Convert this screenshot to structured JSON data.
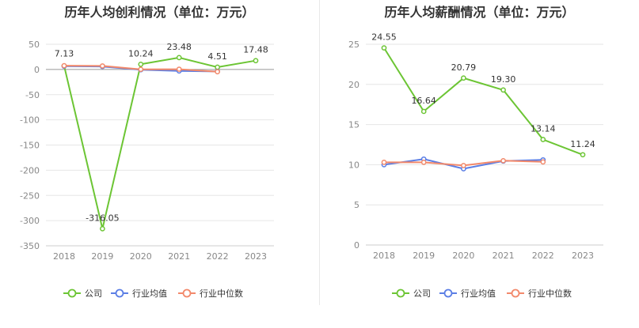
{
  "chart_data": [
    {
      "type": "line",
      "title": "历年人均创利情况（单位：万元）",
      "categories": [
        "2018",
        "2019",
        "2020",
        "2021",
        "2022",
        "2023"
      ],
      "ylim": [
        -350,
        50
      ],
      "yticks": [
        50,
        0,
        -50,
        -100,
        -150,
        -200,
        -250,
        -300,
        -350
      ],
      "grid": true,
      "legend_position": "bottom-center",
      "series": [
        {
          "name": "公司",
          "color": "#6cc534",
          "values": [
            7.13,
            -316.05,
            10.24,
            23.48,
            4.51,
            17.48
          ],
          "labels": [
            "7.13",
            "-316.05",
            "10.24",
            "23.48",
            "4.51",
            "17.48"
          ]
        },
        {
          "name": "行业均值",
          "color": "#5b7ee5",
          "values": [
            6.5,
            5.8,
            -0.5,
            -3.0,
            -4.0,
            null
          ]
        },
        {
          "name": "行业中位数",
          "color": "#f2896b",
          "values": [
            7.5,
            7.0,
            0.2,
            0.5,
            -4.5,
            null
          ]
        }
      ]
    },
    {
      "type": "line",
      "title": "历年人均薪酬情况（单位：万元）",
      "categories": [
        "2018",
        "2019",
        "2020",
        "2021",
        "2022",
        "2023"
      ],
      "ylim": [
        0,
        25
      ],
      "yticks": [
        25,
        20,
        15,
        10,
        5,
        0
      ],
      "grid": true,
      "legend_position": "bottom-center",
      "series": [
        {
          "name": "公司",
          "color": "#6cc534",
          "values": [
            24.55,
            16.64,
            20.79,
            19.3,
            13.14,
            11.24
          ],
          "labels": [
            "24.55",
            "16.64",
            "20.79",
            "19.30",
            "13.14",
            "11.24"
          ]
        },
        {
          "name": "行业均值",
          "color": "#5b7ee5",
          "values": [
            10.0,
            10.7,
            9.5,
            10.45,
            10.6,
            null
          ]
        },
        {
          "name": "行业中位数",
          "color": "#f2896b",
          "values": [
            10.3,
            10.3,
            9.9,
            10.5,
            10.35,
            null
          ]
        }
      ]
    }
  ]
}
